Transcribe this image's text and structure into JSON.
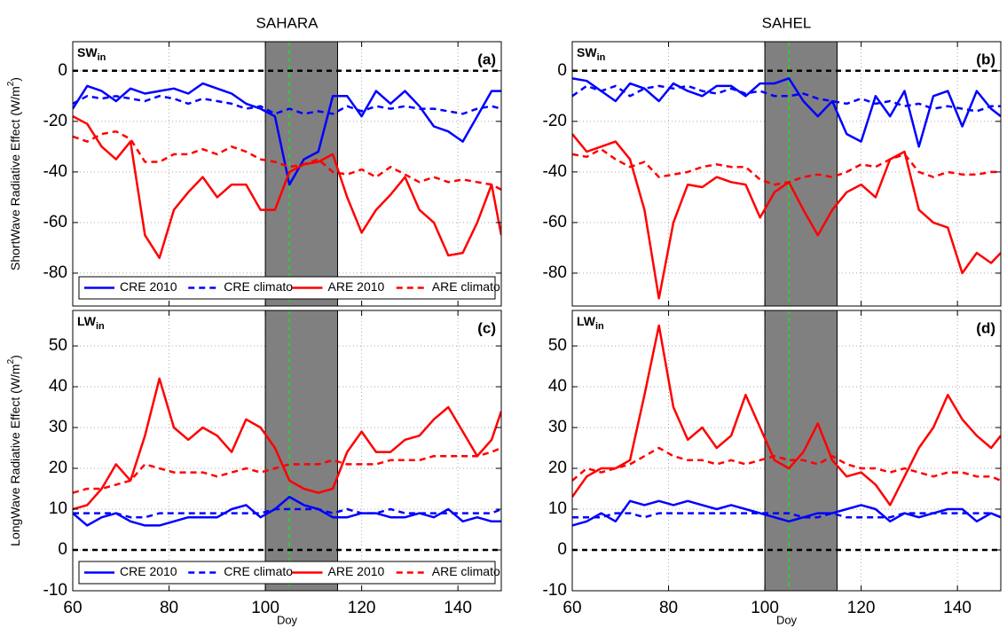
{
  "chart_data": [
    {
      "type": "line",
      "title": "SAHARA",
      "panel_label": "(a)",
      "annotation": {
        "text": "SW",
        "sub": "in"
      },
      "ylabel": {
        "text": "ShortWave Radiative Effect (W/m",
        "sup": "2",
        "end": ")"
      },
      "x": [
        60,
        63,
        66,
        69,
        72,
        75,
        78,
        81,
        84,
        87,
        90,
        93,
        96,
        99,
        102,
        105,
        108,
        111,
        114,
        117,
        120,
        123,
        126,
        129,
        132,
        135,
        138,
        141,
        144,
        147,
        149
      ],
      "xlim": [
        60,
        149
      ],
      "xticks": [
        60,
        80,
        100,
        120,
        140
      ],
      "ylim": [
        -93,
        11.5
      ],
      "yticks": [
        -80,
        -60,
        -40,
        -20,
        0
      ],
      "grid": true,
      "shade": [
        100,
        115
      ],
      "vline": 105,
      "hline": 0,
      "legend": "lower center",
      "series": [
        {
          "name": "CRE 2010",
          "color": "#0000ff",
          "linestyle": "solid",
          "values": [
            -15,
            -6,
            -8,
            -12,
            -7,
            -9,
            -8,
            -7,
            -9,
            -5,
            -7,
            -9,
            -13,
            -15,
            -18,
            -45,
            -35,
            -32,
            -10,
            -10,
            -18,
            -8,
            -13,
            -8,
            -14,
            -22,
            -24,
            -28,
            -18,
            -8,
            -8
          ]
        },
        {
          "name": "CRE climato",
          "color": "#0000ff",
          "linestyle": "dashed",
          "values": [
            -13,
            -10,
            -11,
            -10,
            -11,
            -12,
            -10,
            -11,
            -13,
            -11,
            -12,
            -13,
            -15,
            -14,
            -17,
            -15,
            -17,
            -16,
            -17,
            -14,
            -16,
            -14,
            -15,
            -14,
            -15,
            -15,
            -16,
            -17,
            -15,
            -14,
            -15
          ]
        },
        {
          "name": "ARE 2010",
          "color": "#ff0000",
          "linestyle": "solid",
          "values": [
            -18,
            -21,
            -30,
            -35,
            -28,
            -65,
            -74,
            -55,
            -48,
            -42,
            -50,
            -45,
            -45,
            -55,
            -55,
            -40,
            -37,
            -36,
            -33,
            -50,
            -64,
            -55,
            -49,
            -42,
            -55,
            -60,
            -73,
            -72,
            -60,
            -45,
            -65
          ]
        },
        {
          "name": "ARE climato",
          "color": "#ff0000",
          "linestyle": "dashed",
          "values": [
            -26,
            -28,
            -25,
            -24,
            -27,
            -36,
            -36,
            -33,
            -33,
            -31,
            -33,
            -30,
            -32,
            -35,
            -36,
            -38,
            -37,
            -35,
            -40,
            -41,
            -39,
            -42,
            -38,
            -41,
            -44,
            -42,
            -44,
            -43,
            -44,
            -45,
            -47
          ]
        }
      ]
    },
    {
      "type": "line",
      "title": "SAHEL",
      "panel_label": "(b)",
      "annotation": {
        "text": "SW",
        "sub": "in"
      },
      "x": [
        60,
        63,
        66,
        69,
        72,
        75,
        78,
        81,
        84,
        87,
        90,
        93,
        96,
        99,
        102,
        105,
        108,
        111,
        114,
        117,
        120,
        123,
        126,
        129,
        132,
        135,
        138,
        141,
        144,
        147,
        149
      ],
      "xlim": [
        60,
        149
      ],
      "xticks": [
        60,
        80,
        100,
        120,
        140
      ],
      "ylim": [
        -93,
        11.5
      ],
      "yticks": [
        -80,
        -60,
        -40,
        -20,
        0
      ],
      "grid": true,
      "shade": [
        100,
        115
      ],
      "vline": 105,
      "hline": 0,
      "series": [
        {
          "color": "#0000ff",
          "linestyle": "solid",
          "values": [
            -3,
            -4,
            -8,
            -12,
            -5,
            -7,
            -12,
            -5,
            -8,
            -10,
            -6,
            -6,
            -10,
            -5,
            -5,
            -3,
            -12,
            -18,
            -12,
            -25,
            -28,
            -10,
            -18,
            -8,
            -30,
            -10,
            -8,
            -22,
            -8,
            -15,
            -18
          ]
        },
        {
          "color": "#0000ff",
          "linestyle": "dashed",
          "values": [
            -10,
            -6,
            -8,
            -6,
            -10,
            -7,
            -6,
            -7,
            -6,
            -8,
            -9,
            -7,
            -9,
            -8,
            -10,
            -10,
            -9,
            -11,
            -12,
            -13,
            -11,
            -13,
            -12,
            -14,
            -13,
            -15,
            -14,
            -15,
            -16,
            -14,
            -14
          ]
        },
        {
          "color": "#ff0000",
          "linestyle": "solid",
          "values": [
            -25,
            -32,
            -30,
            -28,
            -35,
            -55,
            -90,
            -60,
            -45,
            -46,
            -42,
            -44,
            -45,
            -58,
            -48,
            -44,
            -55,
            -65,
            -55,
            -48,
            -45,
            -50,
            -35,
            -32,
            -55,
            -60,
            -62,
            -80,
            -72,
            -76,
            -72
          ]
        },
        {
          "color": "#ff0000",
          "linestyle": "dashed",
          "values": [
            -33,
            -34,
            -31,
            -35,
            -38,
            -36,
            -42,
            -41,
            -40,
            -38,
            -37,
            -38,
            -38,
            -43,
            -45,
            -44,
            -42,
            -41,
            -42,
            -40,
            -37,
            -38,
            -35,
            -33,
            -40,
            -42,
            -40,
            -41,
            -41,
            -40,
            -40
          ]
        }
      ]
    },
    {
      "type": "line",
      "panel_label": "(c)",
      "annotation": {
        "text": "LW",
        "sub": "in"
      },
      "ylabel": {
        "text": "LongWave Radiative Effect (W/m",
        "sup": "2",
        "end": ")"
      },
      "xlabel": "Doy",
      "x": [
        60,
        63,
        66,
        69,
        72,
        75,
        78,
        81,
        84,
        87,
        90,
        93,
        96,
        99,
        102,
        105,
        108,
        111,
        114,
        117,
        120,
        123,
        126,
        129,
        132,
        135,
        138,
        141,
        144,
        147,
        149
      ],
      "xlim": [
        60,
        149
      ],
      "xticks": [
        60,
        80,
        100,
        120,
        140
      ],
      "ylim": [
        -10,
        58.7
      ],
      "yticks": [
        -10,
        0,
        10,
        20,
        30,
        40,
        50
      ],
      "grid": true,
      "shade": [
        100,
        115
      ],
      "vline": 105,
      "hline": 0,
      "legend": "lower center",
      "series": [
        {
          "name": "CRE 2010",
          "color": "#0000ff",
          "linestyle": "solid",
          "values": [
            9,
            6,
            8,
            9,
            7,
            6,
            6,
            7,
            8,
            8,
            8,
            10,
            11,
            8,
            10,
            13,
            11,
            10,
            8,
            8,
            9,
            9,
            8,
            8,
            9,
            8,
            10,
            7,
            8,
            7,
            7
          ]
        },
        {
          "name": "CRE climato",
          "color": "#0000ff",
          "linestyle": "dashed",
          "values": [
            9,
            9,
            9,
            9,
            8,
            8,
            9,
            9,
            9,
            9,
            9,
            9,
            9,
            9,
            10,
            10,
            10,
            10,
            9,
            10,
            9,
            9,
            10,
            9,
            9,
            9,
            9,
            9,
            9,
            9,
            10
          ]
        },
        {
          "name": "ARE 2010",
          "color": "#ff0000",
          "linestyle": "solid",
          "values": [
            10,
            11,
            15,
            21,
            17,
            28,
            42,
            30,
            27,
            30,
            28,
            24,
            32,
            30,
            25,
            17,
            15,
            14,
            15,
            24,
            29,
            24,
            24,
            27,
            28,
            32,
            35,
            29,
            23,
            27,
            34
          ]
        },
        {
          "name": "ARE climato",
          "color": "#ff0000",
          "linestyle": "dashed",
          "values": [
            14,
            15,
            15,
            16,
            17,
            21,
            20,
            19,
            19,
            19,
            18,
            19,
            20,
            19,
            20,
            21,
            21,
            21,
            22,
            21,
            21,
            21,
            22,
            22,
            22,
            23,
            23,
            23,
            23,
            24,
            25
          ]
        }
      ]
    },
    {
      "type": "line",
      "panel_label": "(d)",
      "annotation": {
        "text": "LW",
        "sub": "in"
      },
      "xlabel": "Doy",
      "x": [
        60,
        63,
        66,
        69,
        72,
        75,
        78,
        81,
        84,
        87,
        90,
        93,
        96,
        99,
        102,
        105,
        108,
        111,
        114,
        117,
        120,
        123,
        126,
        129,
        132,
        135,
        138,
        141,
        144,
        147,
        149
      ],
      "xlim": [
        60,
        149
      ],
      "xticks": [
        60,
        80,
        100,
        120,
        140
      ],
      "ylim": [
        -10,
        58.7
      ],
      "yticks": [
        -10,
        0,
        10,
        20,
        30,
        40,
        50
      ],
      "grid": true,
      "shade": [
        100,
        115
      ],
      "vline": 105,
      "hline": 0,
      "series": [
        {
          "color": "#0000ff",
          "linestyle": "solid",
          "values": [
            6,
            7,
            9,
            7,
            12,
            11,
            12,
            11,
            12,
            11,
            10,
            11,
            10,
            9,
            8,
            7,
            8,
            9,
            9,
            10,
            11,
            10,
            7,
            9,
            8,
            9,
            10,
            10,
            7,
            9,
            8
          ]
        },
        {
          "color": "#0000ff",
          "linestyle": "dashed",
          "values": [
            8,
            8,
            8,
            9,
            9,
            8,
            9,
            9,
            9,
            9,
            9,
            9,
            9,
            9,
            9,
            9,
            8,
            8,
            9,
            8,
            8,
            8,
            8,
            9,
            9,
            9,
            9,
            9,
            9,
            9,
            8
          ]
        },
        {
          "color": "#ff0000",
          "linestyle": "solid",
          "values": [
            13,
            18,
            20,
            20,
            22,
            38,
            55,
            35,
            27,
            30,
            25,
            28,
            38,
            30,
            22,
            20,
            24,
            31,
            22,
            18,
            19,
            16,
            11,
            18,
            25,
            30,
            38,
            32,
            28,
            25,
            28
          ]
        },
        {
          "color": "#ff0000",
          "linestyle": "dashed",
          "values": [
            17,
            20,
            19,
            20,
            21,
            23,
            25,
            23,
            22,
            22,
            21,
            22,
            21,
            22,
            23,
            22,
            22,
            21,
            23,
            21,
            20,
            20,
            19,
            20,
            19,
            18,
            19,
            19,
            18,
            18,
            17
          ]
        }
      ]
    }
  ]
}
